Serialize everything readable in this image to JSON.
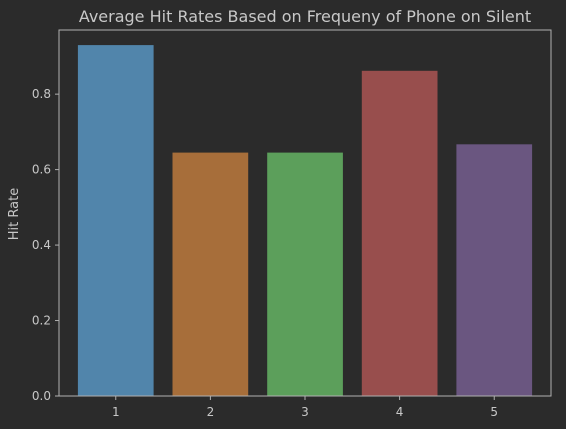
{
  "chart_data": {
    "type": "bar",
    "title": "Average Hit Rates Based on Frequeny of Phone on Silent",
    "xlabel": "",
    "ylabel": "Hit Rate",
    "categories": [
      "1",
      "2",
      "3",
      "4",
      "5"
    ],
    "values": [
      0.93,
      0.645,
      0.645,
      0.862,
      0.667
    ],
    "colors": [
      "#5185ab",
      "#a76e3a",
      "#5c9f5b",
      "#984e4d",
      "#6a5680"
    ],
    "ylim": [
      0,
      0.97
    ],
    "yticks": [
      0.0,
      0.2,
      0.4,
      0.6,
      0.8
    ],
    "ytick_labels": [
      "0.0",
      "0.2",
      "0.4",
      "0.6",
      "0.8"
    ],
    "grid": false,
    "background": "#2b2b2b",
    "axis_color": "#b0b0b0"
  }
}
